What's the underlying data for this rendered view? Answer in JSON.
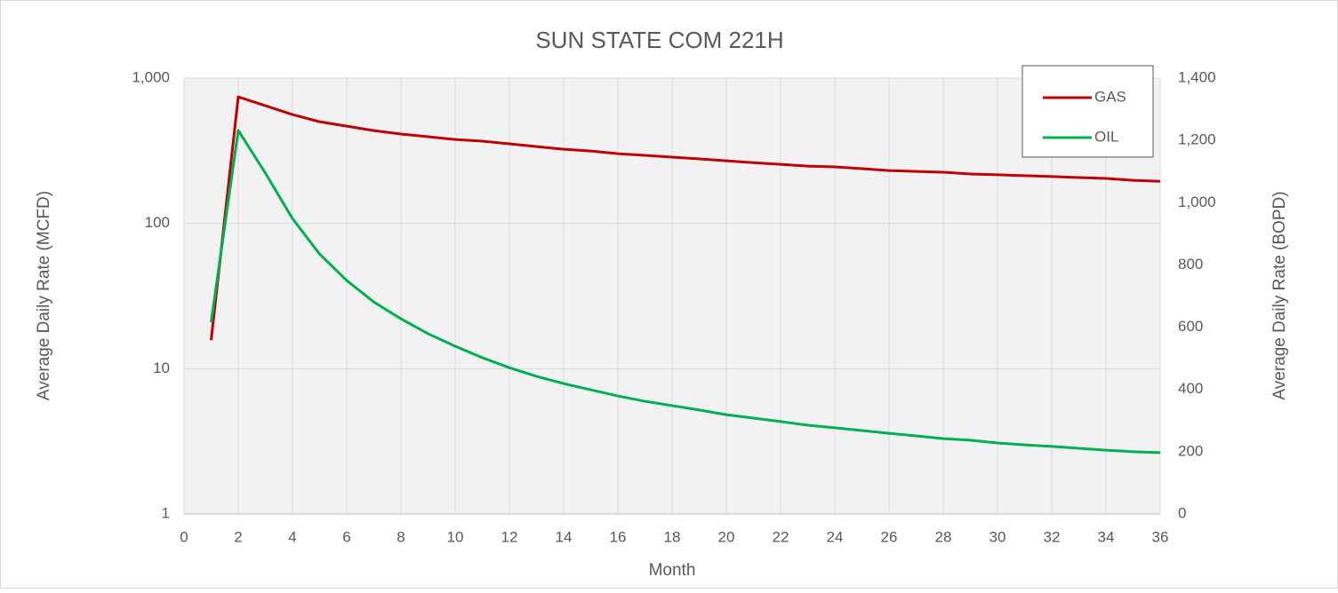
{
  "chart_data": {
    "type": "line",
    "title": "SUN STATE COM 221H",
    "x_label": "Month",
    "y_label": "Average Daily Rate (MCFD)",
    "y2_label": "Average Daily Rate (BOPD)",
    "x": [
      1,
      2,
      3,
      4,
      5,
      6,
      7,
      8,
      9,
      10,
      11,
      12,
      13,
      14,
      15,
      16,
      17,
      18,
      19,
      20,
      21,
      22,
      23,
      24,
      25,
      26,
      27,
      28,
      29,
      30,
      31,
      32,
      33,
      34,
      35,
      36
    ],
    "series": [
      {
        "name": "GAS",
        "color": "#c00000",
        "values": [
          15.7,
          743,
          646,
          561,
          501,
          467,
          435,
          412,
          395,
          378,
          368,
          353,
          338,
          324,
          315,
          302,
          294,
          286,
          278,
          270,
          262,
          255,
          248,
          245,
          238,
          231,
          228,
          225,
          219,
          216,
          213,
          210,
          207,
          204,
          198,
          195
        ]
      },
      {
        "name": "OIL",
        "color": "#00b050",
        "axis": "y2",
        "values": [
          616,
          1232,
          1095,
          949,
          835,
          750,
          681,
          627,
          579,
          539,
          502,
          470,
          442,
          419,
          399,
          379,
          362,
          348,
          334,
          319,
          308,
          297,
          285,
          277,
          268,
          259,
          251,
          242,
          237,
          228,
          222,
          217,
          211,
          205,
          200,
          197
        ]
      }
    ],
    "xlim": [
      0,
      36
    ],
    "xticks": [
      0,
      2,
      4,
      6,
      8,
      10,
      12,
      14,
      16,
      18,
      20,
      22,
      24,
      26,
      28,
      30,
      32,
      34,
      36
    ],
    "ylim": [
      1,
      1000
    ],
    "ylog": true,
    "yticks": [
      1,
      10,
      100,
      {
        "value": 1000,
        "label": "1,000"
      }
    ],
    "y2lim": [
      0,
      1400
    ],
    "y2ticks": [
      0,
      200,
      400,
      600,
      800,
      {
        "value": 1000,
        "label": "1,000"
      },
      {
        "value": 1200,
        "label": "1,200"
      },
      {
        "value": 1400,
        "label": "1,400"
      }
    ],
    "grid": true,
    "legend": "upper right"
  }
}
